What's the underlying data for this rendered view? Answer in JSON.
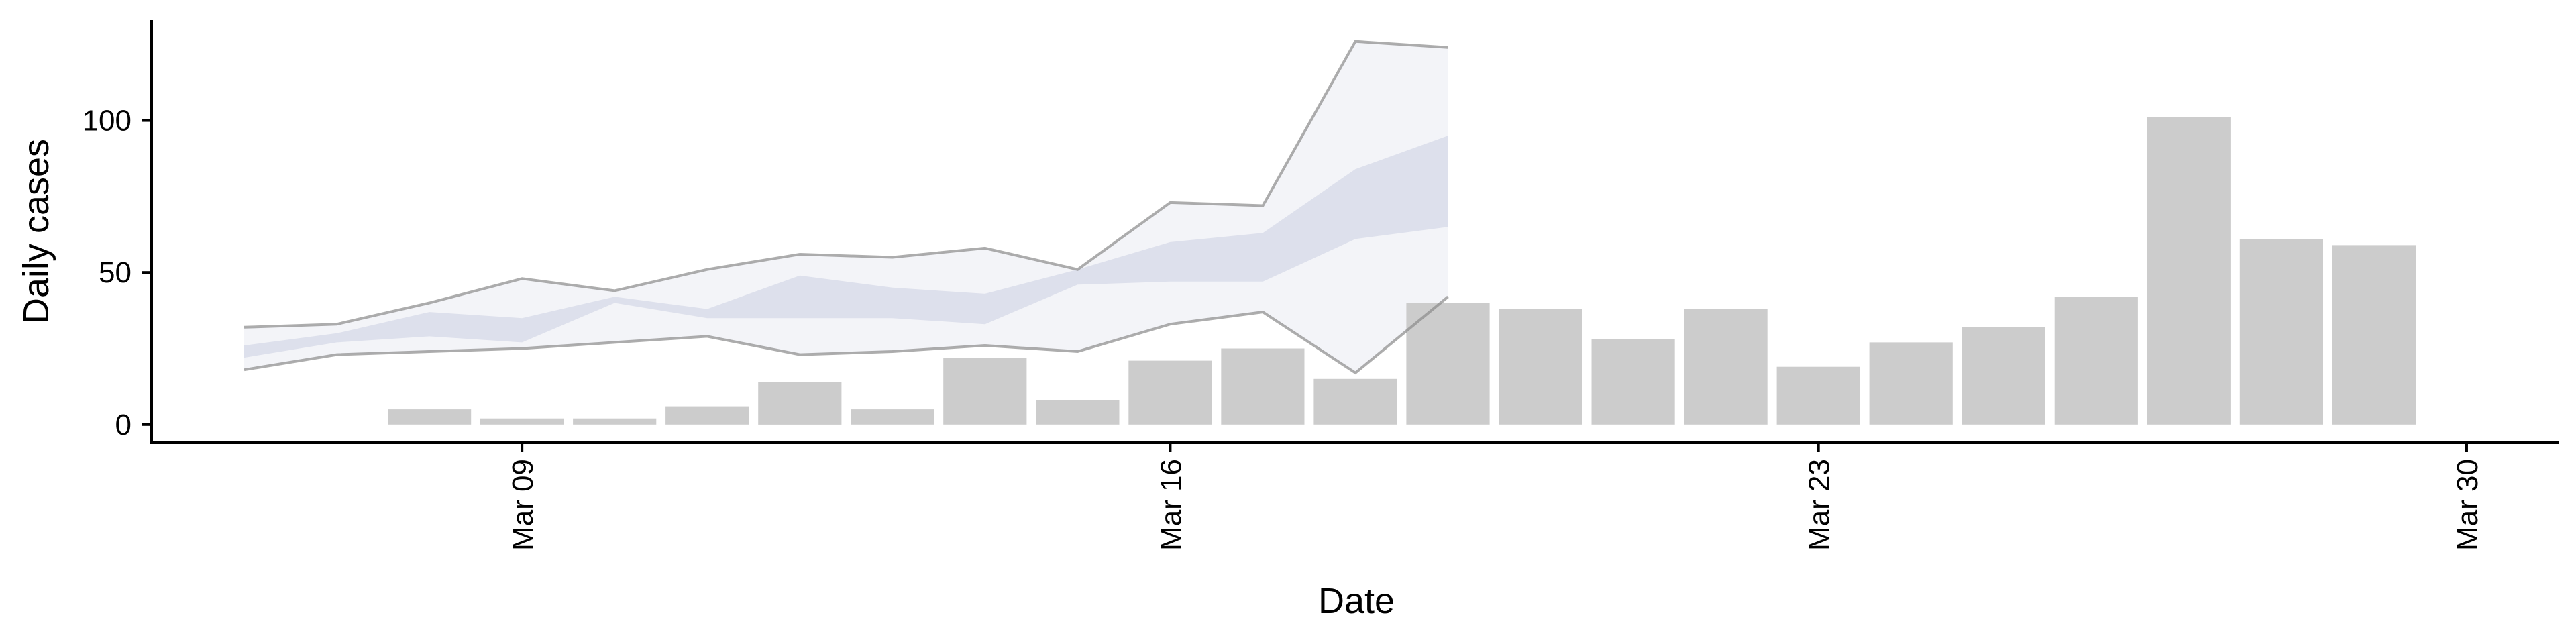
{
  "chart_data": {
    "type": "bar",
    "title": "",
    "xlabel": "Date",
    "ylabel": "Daily cases",
    "x_ticks": [
      "Mar 09",
      "Mar 16",
      "Mar 23",
      "Mar 30"
    ],
    "y_ticks": [
      0,
      50,
      100
    ],
    "xlim": [
      "2020-03-05",
      "2020-03-31"
    ],
    "ylim": [
      -6,
      133
    ],
    "grid": false,
    "legend": "none",
    "bars": {
      "name": "",
      "color": "#cccccc",
      "dates": [
        "2020-03-08",
        "2020-03-09",
        "2020-03-10",
        "2020-03-11",
        "2020-03-12",
        "2020-03-13",
        "2020-03-14",
        "2020-03-15",
        "2020-03-16",
        "2020-03-17",
        "2020-03-18",
        "2020-03-19",
        "2020-03-20",
        "2020-03-21",
        "2020-03-22",
        "2020-03-23",
        "2020-03-24",
        "2020-03-25",
        "2020-03-26",
        "2020-03-27",
        "2020-03-28",
        "2020-03-29"
      ],
      "values": [
        5,
        2,
        2,
        6,
        14,
        5,
        22,
        8,
        21,
        25,
        15,
        40,
        38,
        28,
        38,
        19,
        27,
        32,
        42,
        101,
        61,
        59
      ]
    },
    "nowcast": {
      "color_band": "#c7cce0",
      "color_line": "#8a8a8a",
      "dates": [
        "2020-03-06",
        "2020-03-07",
        "2020-03-08",
        "2020-03-09",
        "2020-03-10",
        "2020-03-11",
        "2020-03-12",
        "2020-03-13",
        "2020-03-14",
        "2020-03-15",
        "2020-03-16",
        "2020-03-17",
        "2020-03-18",
        "2020-03-19",
        "2020-03-20"
      ],
      "outer_upper": [
        32,
        33,
        40,
        48,
        44,
        51,
        56,
        55,
        58,
        51,
        73,
        72,
        126,
        124,
        null
      ],
      "outer_lower": [
        18,
        23,
        24,
        25,
        27,
        29,
        23,
        24,
        26,
        24,
        33,
        37,
        17,
        42,
        null
      ],
      "inner_upper": [
        26,
        30,
        37,
        35,
        42,
        38,
        49,
        45,
        43,
        51,
        60,
        63,
        84,
        95,
        null
      ],
      "inner_lower": [
        22,
        27,
        29,
        27,
        40,
        35,
        35,
        35,
        33,
        46,
        47,
        47,
        61,
        65,
        null
      ]
    }
  }
}
